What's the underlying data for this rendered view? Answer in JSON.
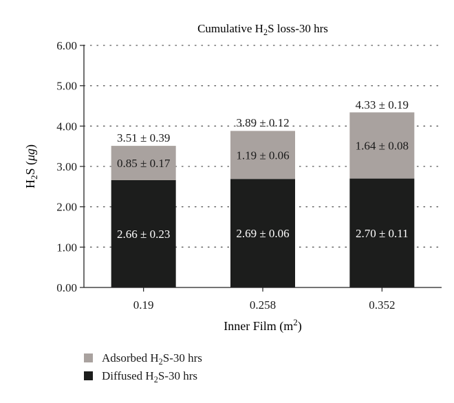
{
  "chart_data": {
    "type": "bar",
    "stacked": true,
    "title": {
      "pre": "Cumulative H",
      "sub": "2",
      "post": "S loss-30 hrs"
    },
    "ylabel": {
      "pre": "H",
      "sub": "2",
      "mid": "S (",
      "italic": "μg",
      "post": ")"
    },
    "xlabel": {
      "pre": "Inner Film (m",
      "sup": "2",
      "post": ")"
    },
    "categories": [
      "0.19",
      "0.258",
      "0.352"
    ],
    "ylim": [
      0,
      6
    ],
    "yticks": [
      "0.00",
      "1.00",
      "2.00",
      "3.00",
      "4.00",
      "5.00",
      "6.00"
    ],
    "grid": "horizontal-dotted",
    "legend_position": "bottom-left",
    "series": [
      {
        "name": {
          "pre": "Diffused H",
          "sub": "2",
          "post": "S-30 hrs"
        },
        "color": "#1c1d1c",
        "label_color": "#ffffff",
        "values": [
          2.66,
          2.69,
          2.7
        ],
        "labels": [
          "2.66 ± 0.23",
          "2.69 ± 0.06",
          "2.70 ± 0.11"
        ]
      },
      {
        "name": {
          "pre": "Adsorbed H",
          "sub": "2",
          "post": "S-30 hrs"
        },
        "color": "#a9a29f",
        "label_color": "#1a1a1a",
        "values": [
          0.85,
          1.19,
          1.64
        ],
        "labels": [
          "0.85 ± 0.17",
          "1.19 ± 0.06",
          "1.64 ± 0.08"
        ]
      }
    ],
    "totals": {
      "values": [
        3.51,
        3.89,
        4.33
      ],
      "labels": [
        "3.51 ± 0.39",
        "3.89 ± 0.12",
        "4.33 ± 0.19"
      ]
    }
  }
}
